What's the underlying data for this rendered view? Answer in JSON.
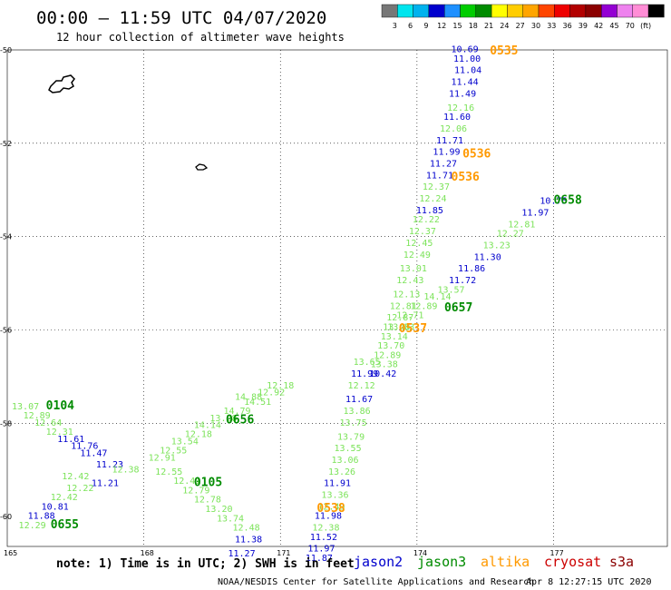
{
  "header": {
    "title": "00:00 – 11:59 UTC 04/07/2020",
    "subtitle": "12 hour collection of altimeter wave heights"
  },
  "color_scale": {
    "colors": [
      "#777777",
      "#00e5ee",
      "#00b2ee",
      "#0000cd",
      "#1e90ff",
      "#00cd00",
      "#008b00",
      "#ffff00",
      "#ffcd00",
      "#ffa500",
      "#ff4500",
      "#ee0000",
      "#b20000",
      "#8b0000",
      "#9400d3",
      "#ee82ee",
      "#ff8dd6",
      "#000000"
    ],
    "labels": [
      "3",
      "6",
      "9",
      "12",
      "15",
      "18",
      "21",
      "24",
      "27",
      "30",
      "33",
      "36",
      "39",
      "42",
      "45",
      "70",
      "(ft)"
    ]
  },
  "axes": {
    "lon_labels": [
      "165",
      "168",
      "171",
      "174",
      "177"
    ],
    "lat_labels": [
      "-50",
      "-52",
      "-54",
      "-56",
      "-58",
      "-60"
    ]
  },
  "satellite_colors": {
    "jason2": "#0000cd",
    "jason3": "#008b00",
    "jason3_light": "#7ce35a",
    "altika": "#ff9900",
    "cryosat": "#cc0000",
    "s3a": "#8b0000"
  },
  "observations": [
    {
      "text": "10.69",
      "sat": "jason2",
      "lon": 174.75,
      "lat": -50.05
    },
    {
      "text": "11.00",
      "sat": "jason2",
      "lon": 174.8,
      "lat": -50.25
    },
    {
      "text": "11.04",
      "sat": "jason2",
      "lon": 174.82,
      "lat": -50.5
    },
    {
      "text": "11.44",
      "sat": "jason2",
      "lon": 174.75,
      "lat": -50.75
    },
    {
      "text": "11.49",
      "sat": "jason2",
      "lon": 174.7,
      "lat": -51.0
    },
    {
      "text": "12.16",
      "sat": "jason3_light",
      "lon": 174.66,
      "lat": -51.3
    },
    {
      "text": "11.60",
      "sat": "jason2",
      "lon": 174.58,
      "lat": -51.5
    },
    {
      "text": "12.06",
      "sat": "jason3_light",
      "lon": 174.5,
      "lat": -51.75
    },
    {
      "text": "11.71",
      "sat": "jason2",
      "lon": 174.42,
      "lat": -52.0
    },
    {
      "text": "11.99",
      "sat": "jason2",
      "lon": 174.35,
      "lat": -52.25
    },
    {
      "text": "11.27",
      "sat": "jason2",
      "lon": 174.28,
      "lat": -52.5
    },
    {
      "text": "11.71",
      "sat": "jason2",
      "lon": 174.2,
      "lat": -52.75
    },
    {
      "text": "12.37",
      "sat": "jason3_light",
      "lon": 174.12,
      "lat": -53.0
    },
    {
      "text": "12.24",
      "sat": "jason3_light",
      "lon": 174.05,
      "lat": -53.25
    },
    {
      "text": "11.85",
      "sat": "jason2",
      "lon": 173.98,
      "lat": -53.5
    },
    {
      "text": "12.22",
      "sat": "jason3_light",
      "lon": 173.9,
      "lat": -53.7
    },
    {
      "text": "12.37",
      "sat": "jason3_light",
      "lon": 173.82,
      "lat": -53.95
    },
    {
      "text": "12.45",
      "sat": "jason3_light",
      "lon": 173.75,
      "lat": -54.2
    },
    {
      "text": "12.49",
      "sat": "jason3_light",
      "lon": 173.7,
      "lat": -54.45
    },
    {
      "text": "13.01",
      "sat": "jason3_light",
      "lon": 173.62,
      "lat": -54.75
    },
    {
      "text": "12.43",
      "sat": "jason3_light",
      "lon": 173.55,
      "lat": -55.0
    },
    {
      "text": "12.13",
      "sat": "jason3_light",
      "lon": 173.47,
      "lat": -55.3
    },
    {
      "text": "12.81",
      "sat": "jason3_light",
      "lon": 173.4,
      "lat": -55.55
    },
    {
      "text": "12.87",
      "sat": "jason3_light",
      "lon": 173.33,
      "lat": -55.8
    },
    {
      "text": "13.48",
      "sat": "jason3_light",
      "lon": 173.25,
      "lat": -56.0
    },
    {
      "text": "13.14",
      "sat": "jason3_light",
      "lon": 173.2,
      "lat": -56.2
    },
    {
      "text": "13.70",
      "sat": "jason3_light",
      "lon": 173.13,
      "lat": -56.4
    },
    {
      "text": "12.89",
      "sat": "jason3_light",
      "lon": 173.05,
      "lat": -56.6
    },
    {
      "text": "13.38",
      "sat": "jason3_light",
      "lon": 172.98,
      "lat": -56.8
    },
    {
      "text": "10.42",
      "sat": "jason2",
      "lon": 172.95,
      "lat": -57.0
    },
    {
      "text": "13.65",
      "sat": "jason3_light",
      "lon": 172.6,
      "lat": -56.75
    },
    {
      "text": "11.99",
      "sat": "jason2",
      "lon": 172.55,
      "lat": -57.0
    },
    {
      "text": "12.12",
      "sat": "jason3_light",
      "lon": 172.48,
      "lat": -57.25
    },
    {
      "text": "11.67",
      "sat": "jason2",
      "lon": 172.43,
      "lat": -57.55
    },
    {
      "text": "13.86",
      "sat": "jason3_light",
      "lon": 172.38,
      "lat": -57.8
    },
    {
      "text": "13.75",
      "sat": "jason3_light",
      "lon": 172.3,
      "lat": -58.05
    },
    {
      "text": "13.79",
      "sat": "jason3_light",
      "lon": 172.25,
      "lat": -58.35
    },
    {
      "text": "13.55",
      "sat": "jason3_light",
      "lon": 172.18,
      "lat": -58.6
    },
    {
      "text": "13.06",
      "sat": "jason3_light",
      "lon": 172.12,
      "lat": -58.85
    },
    {
      "text": "13.26",
      "sat": "jason3_light",
      "lon": 172.05,
      "lat": -59.1
    },
    {
      "text": "11.91",
      "sat": "jason2",
      "lon": 171.95,
      "lat": -59.35
    },
    {
      "text": "13.36",
      "sat": "jason3_light",
      "lon": 171.9,
      "lat": -59.6
    },
    {
      "text": "12.49",
      "sat": "jason3_light",
      "lon": 171.82,
      "lat": -59.85
    },
    {
      "text": "11.98",
      "sat": "jason2",
      "lon": 171.75,
      "lat": -60.05
    },
    {
      "text": "12.38",
      "sat": "jason3_light",
      "lon": 171.7,
      "lat": -60.3
    },
    {
      "text": "11.52",
      "sat": "jason2",
      "lon": 171.65,
      "lat": -60.5
    },
    {
      "text": "11.97",
      "sat": "jason2",
      "lon": 171.6,
      "lat": -60.75
    },
    {
      "text": "11.87",
      "sat": "jason2",
      "lon": 171.55,
      "lat": -60.95
    },
    {
      "text": "12.18",
      "sat": "jason3_light",
      "lon": 170.7,
      "lat": -57.25
    },
    {
      "text": "12.92",
      "sat": "jason3_light",
      "lon": 170.5,
      "lat": -57.4
    },
    {
      "text": "14.51",
      "sat": "jason3_light",
      "lon": 170.2,
      "lat": -57.6
    },
    {
      "text": "14.88",
      "sat": "jason3_light",
      "lon": 170.0,
      "lat": -57.5
    },
    {
      "text": "14.79",
      "sat": "jason3_light",
      "lon": 169.75,
      "lat": -57.8
    },
    {
      "text": "13.28",
      "sat": "jason3_light",
      "lon": 169.45,
      "lat": -57.95
    },
    {
      "text": "14.14",
      "sat": "jason3_light",
      "lon": 169.1,
      "lat": -58.1
    },
    {
      "text": "12.18",
      "sat": "jason3_light",
      "lon": 168.9,
      "lat": -58.3
    },
    {
      "text": "13.54",
      "sat": "jason3_light",
      "lon": 168.6,
      "lat": -58.45
    },
    {
      "text": "12.55",
      "sat": "jason3_light",
      "lon": 168.35,
      "lat": -58.65
    },
    {
      "text": "12.91",
      "sat": "jason3_light",
      "lon": 168.1,
      "lat": -58.8
    },
    {
      "text": "12.55",
      "sat": "jason3_light",
      "lon": 168.25,
      "lat": -59.1
    },
    {
      "text": "12.41",
      "sat": "jason3_light",
      "lon": 168.65,
      "lat": -59.3
    },
    {
      "text": "12.79",
      "sat": "jason3_light",
      "lon": 168.85,
      "lat": -59.5
    },
    {
      "text": "12.78",
      "sat": "jason3_light",
      "lon": 169.1,
      "lat": -59.7
    },
    {
      "text": "13.20",
      "sat": "jason3_light",
      "lon": 169.35,
      "lat": -59.9
    },
    {
      "text": "13.74",
      "sat": "jason3_light",
      "lon": 169.6,
      "lat": -60.1
    },
    {
      "text": "12.48",
      "sat": "jason3_light",
      "lon": 169.95,
      "lat": -60.3
    },
    {
      "text": "11.38",
      "sat": "jason2",
      "lon": 170.0,
      "lat": -60.55
    },
    {
      "text": "11.27",
      "sat": "jason2",
      "lon": 169.85,
      "lat": -60.85
    },
    {
      "text": "13.07",
      "sat": "jason3_light",
      "lon": 165.1,
      "lat": -57.7
    },
    {
      "text": "12.89",
      "sat": "jason3_light",
      "lon": 165.35,
      "lat": -57.9
    },
    {
      "text": "12.64",
      "sat": "jason3_light",
      "lon": 165.6,
      "lat": -58.05
    },
    {
      "text": "12.31",
      "sat": "jason3_light",
      "lon": 165.85,
      "lat": -58.25
    },
    {
      "text": "11.61",
      "sat": "jason2",
      "lon": 166.1,
      "lat": -58.4
    },
    {
      "text": "11.76",
      "sat": "jason2",
      "lon": 166.4,
      "lat": -58.55
    },
    {
      "text": "11.47",
      "sat": "jason2",
      "lon": 166.6,
      "lat": -58.7
    },
    {
      "text": "11.23",
      "sat": "jason2",
      "lon": 166.95,
      "lat": -58.95
    },
    {
      "text": "12.38",
      "sat": "jason3_light",
      "lon": 167.3,
      "lat": -59.05
    },
    {
      "text": "12.42",
      "sat": "jason3_light",
      "lon": 166.2,
      "lat": -59.2
    },
    {
      "text": "11.21",
      "sat": "jason2",
      "lon": 166.85,
      "lat": -59.35
    },
    {
      "text": "12.22",
      "sat": "jason3_light",
      "lon": 166.3,
      "lat": -59.45
    },
    {
      "text": "12.42",
      "sat": "jason3_light",
      "lon": 165.95,
      "lat": -59.65
    },
    {
      "text": "10.81",
      "sat": "jason2",
      "lon": 165.75,
      "lat": -59.85
    },
    {
      "text": "11.88",
      "sat": "jason2",
      "lon": 165.45,
      "lat": -60.05
    },
    {
      "text": "12.29",
      "sat": "jason3_light",
      "lon": 165.25,
      "lat": -60.25
    },
    {
      "text": "10.75",
      "sat": "jason2",
      "lon": 176.7,
      "lat": -53.3
    },
    {
      "text": "11.97",
      "sat": "jason2",
      "lon": 176.3,
      "lat": -53.55
    },
    {
      "text": "12.81",
      "sat": "jason3_light",
      "lon": 176.0,
      "lat": -53.8
    },
    {
      "text": "12.27",
      "sat": "jason3_light",
      "lon": 175.75,
      "lat": -54.0
    },
    {
      "text": "13.23",
      "sat": "jason3_light",
      "lon": 175.45,
      "lat": -54.25
    },
    {
      "text": "11.30",
      "sat": "jason2",
      "lon": 175.25,
      "lat": -54.5
    },
    {
      "text": "11.86",
      "sat": "jason2",
      "lon": 174.9,
      "lat": -54.75
    },
    {
      "text": "11.72",
      "sat": "jason2",
      "lon": 174.7,
      "lat": -55.0
    },
    {
      "text": "13.57",
      "sat": "jason3_light",
      "lon": 174.45,
      "lat": -55.2
    },
    {
      "text": "14.14",
      "sat": "jason3_light",
      "lon": 174.15,
      "lat": -55.35
    },
    {
      "text": "12.89",
      "sat": "jason3_light",
      "lon": 173.85,
      "lat": -55.55
    },
    {
      "text": "12.71",
      "sat": "jason3_light",
      "lon": 173.55,
      "lat": -55.75
    },
    {
      "text": "13.33",
      "sat": "jason3_light",
      "lon": 173.35,
      "lat": -56.0
    }
  ],
  "track_labels": [
    {
      "text": "0535",
      "sat": "altika",
      "lon": 175.6,
      "lat": -50.1
    },
    {
      "text": "0536",
      "sat": "altika",
      "lon": 175.0,
      "lat": -52.3
    },
    {
      "text": "0536",
      "sat": "altika",
      "lon": 174.75,
      "lat": -52.8
    },
    {
      "text": "0537",
      "sat": "altika",
      "lon": 173.6,
      "lat": -56.05
    },
    {
      "text": "0538",
      "sat": "altika",
      "lon": 171.8,
      "lat": -59.9
    },
    {
      "text": "0657",
      "sat": "jason3",
      "lon": 174.6,
      "lat": -55.6
    },
    {
      "text": "0658",
      "sat": "jason3",
      "lon": 177.0,
      "lat": -53.3
    },
    {
      "text": "0656",
      "sat": "jason3",
      "lon": 169.8,
      "lat": -58.0
    },
    {
      "text": "0104",
      "sat": "jason3",
      "lon": 165.85,
      "lat": -57.7
    },
    {
      "text": "0105",
      "sat": "jason3",
      "lon": 169.1,
      "lat": -59.35
    },
    {
      "text": "0655",
      "sat": "jason3",
      "lon": 165.95,
      "lat": -60.25
    }
  ],
  "footer": {
    "note": "note: 1) Time is in UTC; 2) SWH is in feet",
    "sat_names": [
      "jason2",
      "jason3",
      "altika",
      "cryosat",
      "s3a"
    ],
    "credit": "NOAA/NESDIS Center for Satellite Applications and Research",
    "timestamp": "Apr  8 12:27:15 UTC 2020"
  }
}
